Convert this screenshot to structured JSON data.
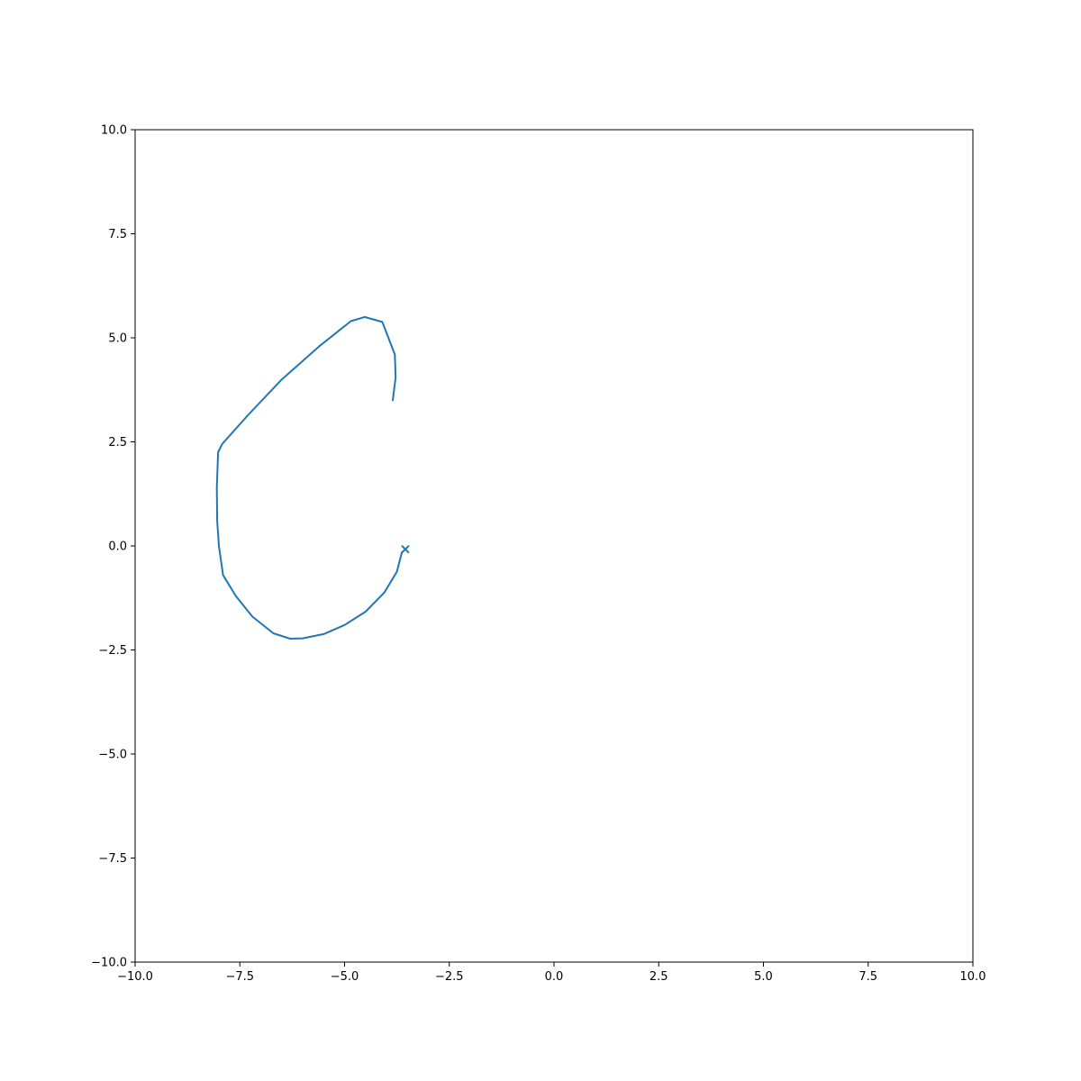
{
  "chart_data": {
    "type": "line",
    "title": "",
    "xlabel": "",
    "ylabel": "",
    "xlim": [
      -10,
      10
    ],
    "ylim": [
      -10,
      10
    ],
    "grid": false,
    "legend": "none",
    "x_ticks": [
      "−10.0",
      "−7.5",
      "−5.0",
      "−2.5",
      "0.0",
      "2.5",
      "5.0",
      "7.5",
      "10.0"
    ],
    "y_ticks": [
      "−10.0",
      "−7.5",
      "−5.0",
      "−2.5",
      "0.0",
      "2.5",
      "5.0",
      "7.5",
      "10.0"
    ],
    "series": [
      {
        "color": "#1f77b4",
        "points": [
          [
            -3.85,
            3.5
          ],
          [
            -3.78,
            4.05
          ],
          [
            -3.8,
            4.6
          ],
          [
            -4.1,
            5.38
          ],
          [
            -4.52,
            5.5
          ],
          [
            -4.85,
            5.4
          ],
          [
            -5.6,
            4.8
          ],
          [
            -6.5,
            4.0
          ],
          [
            -7.3,
            3.15
          ],
          [
            -7.92,
            2.45
          ],
          [
            -8.02,
            2.25
          ],
          [
            -8.05,
            1.4
          ],
          [
            -8.04,
            0.6
          ],
          [
            -8.0,
            0.0
          ],
          [
            -7.9,
            -0.7
          ],
          [
            -7.6,
            -1.2
          ],
          [
            -7.2,
            -1.7
          ],
          [
            -6.7,
            -2.1
          ],
          [
            -6.3,
            -2.23
          ],
          [
            -6.0,
            -2.22
          ],
          [
            -5.5,
            -2.12
          ],
          [
            -5.0,
            -1.9
          ],
          [
            -4.5,
            -1.58
          ],
          [
            -4.05,
            -1.12
          ],
          [
            -3.75,
            -0.62
          ],
          [
            -3.63,
            -0.15
          ]
        ],
        "end_marker": {
          "x": -3.55,
          "y": -0.08,
          "shape": "x"
        }
      }
    ]
  }
}
